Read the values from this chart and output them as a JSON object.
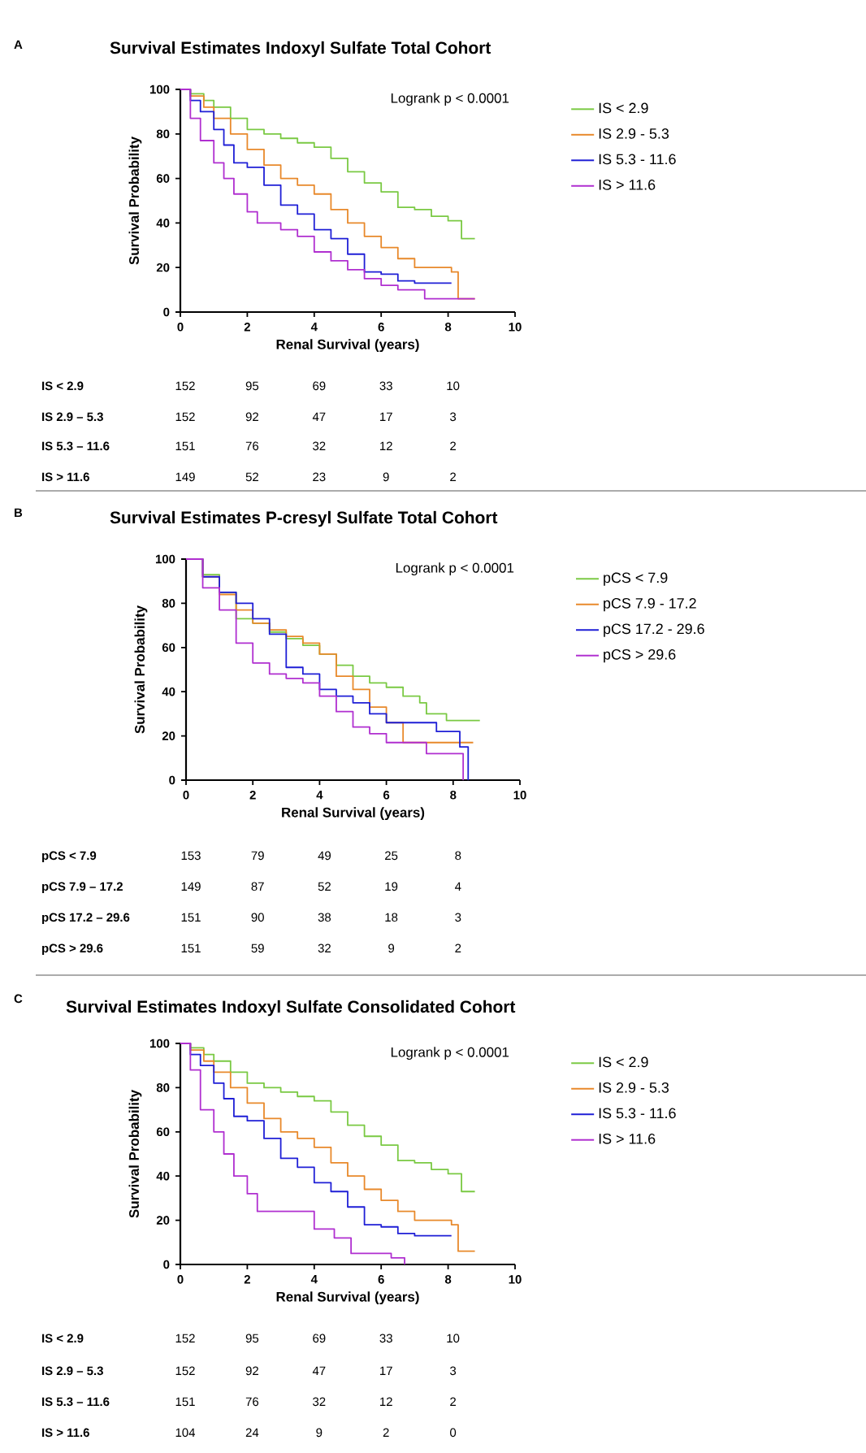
{
  "chart_data": [
    {
      "type": "step",
      "title": "Survival Estimates Indoxyl Sulfate Total Cohort",
      "xlabel": "Renal Survival (years)",
      "ylabel": "Survival Probability",
      "xlim": [
        0,
        10
      ],
      "xticks": [
        0,
        2,
        4,
        6,
        8,
        10
      ],
      "ylim": [
        0,
        100
      ],
      "yticks": [
        0,
        20,
        40,
        60,
        80,
        100
      ],
      "legend": "right",
      "annotations": [
        "A",
        "Logrank p < 0.0001",
        "IS < 2.9",
        "152",
        "95",
        "69",
        "33",
        "10",
        "IS 2.9 – 5.3",
        "152",
        "92",
        "47",
        "17",
        "3",
        "IS 5.3 – 11.6",
        "151",
        "76",
        "32",
        "12",
        "2",
        "IS > 11.6",
        "149",
        "52",
        "23",
        "9",
        "2"
      ],
      "series": [
        {
          "name": "IS < 2.9",
          "color": "#7ac943",
          "x": [
            0,
            0.3,
            0.7,
            1.0,
            1.5,
            2.0,
            2.5,
            3.0,
            3.5,
            4.0,
            4.5,
            5.0,
            5.5,
            6.0,
            6.5,
            7.0,
            7.5,
            8.0,
            8.4,
            8.8
          ],
          "values": [
            100,
            98,
            95,
            92,
            87,
            82,
            80,
            78,
            76,
            74,
            69,
            63,
            58,
            54,
            47,
            46,
            43,
            41,
            33,
            33
          ]
        },
        {
          "name": "IS 2.9 - 5.3",
          "color": "#e8892b",
          "x": [
            0,
            0.3,
            0.7,
            1.0,
            1.5,
            2.0,
            2.5,
            3.0,
            3.5,
            4.0,
            4.5,
            5.0,
            5.5,
            6.0,
            6.5,
            7.0,
            8.1,
            8.3,
            8.8
          ],
          "values": [
            100,
            97,
            92,
            87,
            80,
            73,
            66,
            60,
            57,
            53,
            46,
            40,
            34,
            29,
            24,
            20,
            18,
            6,
            6
          ]
        },
        {
          "name": "IS 5.3 - 11.6",
          "color": "#1f1fd6",
          "x": [
            0,
            0.3,
            0.6,
            1.0,
            1.3,
            1.6,
            2.0,
            2.5,
            3.0,
            3.5,
            4.0,
            4.5,
            5.0,
            5.5,
            6.0,
            6.5,
            7.0,
            8.1
          ],
          "values": [
            100,
            95,
            90,
            82,
            75,
            67,
            65,
            57,
            48,
            44,
            37,
            33,
            26,
            18,
            17,
            14,
            13,
            13
          ]
        },
        {
          "name": "IS > 11.6",
          "color": "#b02fd0",
          "x": [
            0,
            0.3,
            0.6,
            1.0,
            1.3,
            1.6,
            2.0,
            2.3,
            3.0,
            3.5,
            4.0,
            4.5,
            5.0,
            5.5,
            6.0,
            6.5,
            7.3,
            8.8
          ],
          "values": [
            100,
            87,
            77,
            67,
            60,
            53,
            45,
            40,
            37,
            34,
            27,
            23,
            19,
            15,
            12,
            10,
            6,
            6
          ]
        }
      ]
    },
    {
      "type": "step",
      "title": "Survival Estimates P-cresyl Sulfate Total Cohort",
      "xlabel": "Renal Survival (years)",
      "ylabel": "Survival Probability",
      "xlim": [
        0,
        10
      ],
      "xticks": [
        0,
        2,
        4,
        6,
        8,
        10
      ],
      "ylim": [
        0,
        100
      ],
      "yticks": [
        0,
        20,
        40,
        60,
        80,
        100
      ],
      "legend": "right",
      "annotations": [
        "B",
        "Logrank p < 0.0001",
        "pCS < 7.9",
        "153",
        "79",
        "49",
        "25",
        "8",
        "pCS 7.9 – 17.2",
        "149",
        "87",
        "52",
        "19",
        "4",
        "pCS 17.2 – 29.6",
        "151",
        "90",
        "38",
        "18",
        "3",
        "pCS > 29.6",
        "151",
        "59",
        "32",
        "9",
        "2"
      ],
      "series": [
        {
          "name": "pCS < 7.9",
          "color": "#7ac943",
          "x": [
            0,
            0.5,
            1.0,
            1.5,
            2.0,
            2.5,
            3.0,
            3.5,
            4.0,
            4.5,
            5.0,
            5.5,
            6.0,
            6.5,
            7.0,
            7.2,
            7.8,
            8.8
          ],
          "values": [
            100,
            93,
            85,
            73,
            71,
            67,
            64,
            61,
            57,
            52,
            47,
            44,
            42,
            38,
            35,
            30,
            27,
            27
          ]
        },
        {
          "name": "pCS 7.9 - 17.2",
          "color": "#e8892b",
          "x": [
            0,
            0.5,
            1.0,
            1.5,
            2.0,
            2.5,
            3.0,
            3.5,
            4.0,
            4.5,
            5.0,
            5.5,
            6.0,
            6.5,
            8.6
          ],
          "values": [
            100,
            92,
            84,
            77,
            71,
            68,
            65,
            62,
            57,
            47,
            41,
            33,
            26,
            17,
            17
          ]
        },
        {
          "name": "pCS 17.2 - 29.6",
          "color": "#1f1fd6",
          "x": [
            0,
            0.5,
            1.0,
            1.5,
            2.0,
            2.5,
            3.0,
            3.5,
            4.0,
            4.5,
            5.0,
            5.5,
            6.0,
            7.5,
            8.2,
            8.45
          ],
          "values": [
            100,
            92,
            85,
            80,
            73,
            66,
            51,
            48,
            41,
            38,
            35,
            30,
            26,
            22,
            15,
            0
          ]
        },
        {
          "name": "pCS > 29.6",
          "color": "#b02fd0",
          "x": [
            0,
            0.5,
            1.0,
            1.5,
            2.0,
            2.5,
            3.0,
            3.5,
            4.0,
            4.5,
            5.0,
            5.5,
            6.0,
            7.2,
            8.3
          ],
          "values": [
            100,
            87,
            77,
            62,
            53,
            48,
            46,
            44,
            38,
            31,
            24,
            21,
            17,
            12,
            0
          ]
        }
      ]
    },
    {
      "type": "step",
      "title": "Survival Estimates Indoxyl Sulfate Consolidated Cohort",
      "xlabel": "Renal Survival (years)",
      "ylabel": "Survival Probability",
      "xlim": [
        0,
        10
      ],
      "xticks": [
        0,
        2,
        4,
        6,
        8,
        10
      ],
      "ylim": [
        0,
        100
      ],
      "yticks": [
        0,
        20,
        40,
        60,
        80,
        100
      ],
      "legend": "right",
      "annotations": [
        "C",
        "Logrank p < 0.0001",
        "IS < 2.9",
        "152",
        "95",
        "69",
        "33",
        "10",
        "IS 2.9 – 5.3",
        "152",
        "92",
        "47",
        "17",
        "3",
        "IS 5.3 – 11.6",
        "151",
        "76",
        "32",
        "12",
        "2",
        "IS > 11.6",
        "104",
        "24",
        "9",
        "2",
        "0"
      ],
      "series": [
        {
          "name": "IS < 2.9",
          "color": "#7ac943",
          "x": [
            0,
            0.3,
            0.7,
            1.0,
            1.5,
            2.0,
            2.5,
            3.0,
            3.5,
            4.0,
            4.5,
            5.0,
            5.5,
            6.0,
            6.5,
            7.0,
            7.5,
            8.0,
            8.4,
            8.8
          ],
          "values": [
            100,
            98,
            95,
            92,
            87,
            82,
            80,
            78,
            76,
            74,
            69,
            63,
            58,
            54,
            47,
            46,
            43,
            41,
            33,
            33
          ]
        },
        {
          "name": "IS 2.9 - 5.3",
          "color": "#e8892b",
          "x": [
            0,
            0.3,
            0.7,
            1.0,
            1.5,
            2.0,
            2.5,
            3.0,
            3.5,
            4.0,
            4.5,
            5.0,
            5.5,
            6.0,
            6.5,
            7.0,
            8.1,
            8.3,
            8.8
          ],
          "values": [
            100,
            97,
            92,
            87,
            80,
            73,
            66,
            60,
            57,
            53,
            46,
            40,
            34,
            29,
            24,
            20,
            18,
            6,
            6
          ]
        },
        {
          "name": "IS 5.3 - 11.6",
          "color": "#1f1fd6",
          "x": [
            0,
            0.3,
            0.6,
            1.0,
            1.3,
            1.6,
            2.0,
            2.5,
            3.0,
            3.5,
            4.0,
            4.5,
            5.0,
            5.5,
            6.0,
            6.5,
            7.0,
            8.1
          ],
          "values": [
            100,
            95,
            90,
            82,
            75,
            67,
            65,
            57,
            48,
            44,
            37,
            33,
            26,
            18,
            17,
            14,
            13,
            13
          ]
        },
        {
          "name": "IS > 11.6",
          "color": "#b02fd0",
          "x": [
            0,
            0.3,
            0.6,
            1.0,
            1.3,
            1.6,
            2.0,
            2.3,
            3.6,
            4.0,
            4.6,
            5.1,
            6.3,
            6.7
          ],
          "values": [
            100,
            88,
            70,
            60,
            50,
            40,
            32,
            24,
            24,
            16,
            12,
            5,
            3,
            0
          ]
        }
      ]
    }
  ]
}
